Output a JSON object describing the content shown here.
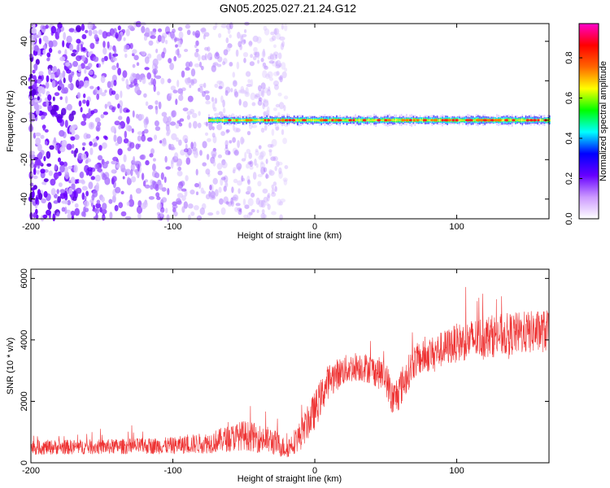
{
  "chart_data": [
    {
      "type": "heatmap",
      "title": "GN05.2025.027.21.24.G12",
      "xlabel": "Height of straight line (km)",
      "ylabel": "Frequency (Hz)",
      "xlim": [
        -200,
        165
      ],
      "ylim": [
        -50,
        49
      ],
      "xticks": [
        -200,
        -100,
        0,
        100
      ],
      "yticks": [
        -40,
        -20,
        0,
        20,
        40
      ],
      "colorbar": {
        "label": "Normalized spectral amplitude",
        "range": [
          0,
          0.97
        ],
        "ticks": [
          0,
          0.2,
          0.4,
          0.6,
          0.8
        ],
        "colors": [
          "#ffffff",
          "#cc99ff",
          "#6600ff",
          "#0000ff",
          "#00ffff",
          "#00ff00",
          "#ffff00",
          "#ff6600",
          "#ff0000",
          "#ff00cc"
        ]
      },
      "description_regions": {
        "scatter_noise_x": [
          -200,
          -20
        ],
        "coherent_signal_x": [
          -75,
          165
        ],
        "signal_frequency_hz": 0
      },
      "grid": false
    },
    {
      "type": "line",
      "xlabel": "Height of straight line (km)",
      "ylabel": "SNR (10 * v/v)",
      "xlim": [
        -200,
        165
      ],
      "ylim": [
        0,
        6300
      ],
      "xticks": [
        -200,
        -100,
        0,
        100
      ],
      "yticks": [
        0,
        2000,
        4000,
        6000
      ],
      "series": [
        {
          "color": "#ee3333",
          "envelope": {
            "x": [
              -200,
              -150,
              -100,
              -75,
              -50,
              -30,
              -20,
              -10,
              0,
              10,
              20,
              30,
              40,
              50,
              55,
              60,
              70,
              80,
              100,
              120,
              140,
              165
            ],
            "mid": [
              500,
              520,
              560,
              650,
              900,
              700,
              450,
              900,
              1700,
              2700,
              3000,
              3150,
              3050,
              2800,
              2000,
              2400,
              3300,
              3500,
              3900,
              4100,
              4200,
              4300
            ],
            "amp": [
              350,
              350,
              400,
              500,
              700,
              650,
              450,
              700,
              900,
              800,
              700,
              700,
              700,
              800,
              900,
              900,
              800,
              800,
              900,
              1000,
              1000,
              1000
            ]
          }
        }
      ],
      "grid": false
    }
  ]
}
